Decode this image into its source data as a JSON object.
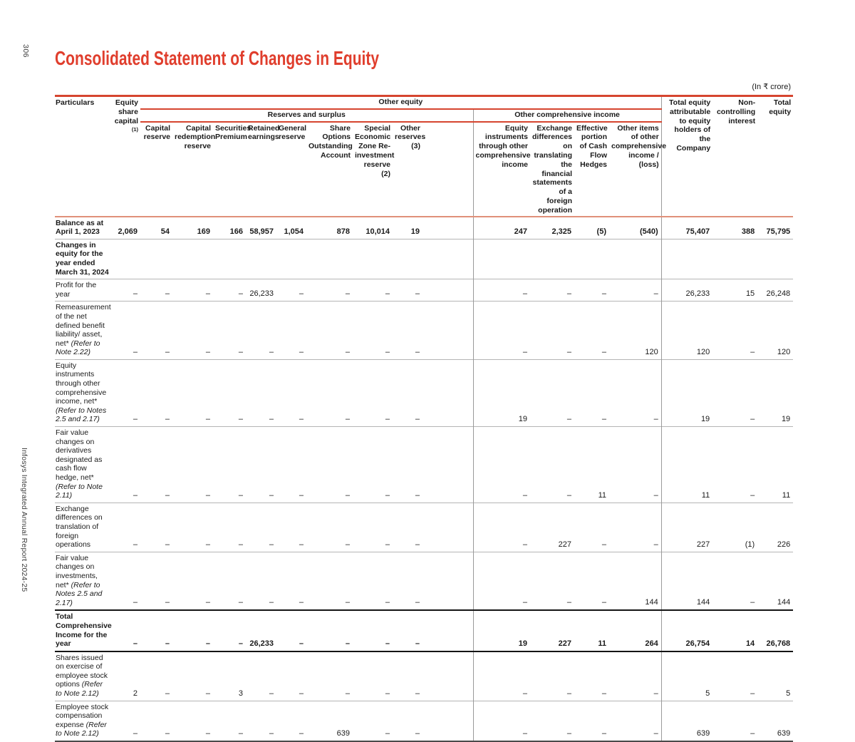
{
  "page": {
    "number": "306",
    "side_text": "Infosys Integrated Annual Report 2024-25",
    "title": "Consolidated Statement of Changes in Equity",
    "currency_note": "(In ₹ crore)"
  },
  "table": {
    "headers": {
      "particulars": "Particulars",
      "equity_share_capital": "Equity share capital",
      "equity_share_capital_note": "(1)",
      "groups": {
        "other_equity": "Other equity",
        "reserves_and_surplus": "Reserves and surplus",
        "other_comprehensive_income": "Other comprehensive income"
      },
      "columns": [
        "Capital reserve",
        "Capital redemption reserve",
        "Securities Premium",
        "Retained earnings",
        "General reserve",
        "Share Options Outstanding Account",
        "Special Economic Zone Re-investment reserve (2)",
        "Other reserves (3)",
        "Equity instruments through other comprehensive income",
        "Exchange differences on translating the financial statements of a foreign operation",
        "Effective portion of Cash Flow Hedges",
        "Other items of other comprehensive income / (loss)"
      ],
      "totals": [
        "Total equity attributable to equity holders of the Company",
        "Non-controlling interest",
        "Total equity"
      ]
    },
    "rows": [
      {
        "label": "Balance as at April 1, 2023",
        "note": "",
        "bold": true,
        "total": false,
        "values": [
          "2,069",
          "54",
          "169",
          "166",
          "58,957",
          "1,054",
          "878",
          "10,014",
          "19",
          "247",
          "2,325",
          "(5)",
          "(540)",
          "75,407",
          "388",
          "75,795"
        ]
      },
      {
        "label": "Changes in equity for the year ended March 31, 2024",
        "note": "",
        "bold": true,
        "label_only": true,
        "total": false,
        "values": [
          "",
          "",
          "",
          "",
          "",
          "",
          "",
          "",
          "",
          "",
          "",
          "",
          "",
          "",
          "",
          ""
        ]
      },
      {
        "label": "Profit for the year",
        "note": "",
        "bold": false,
        "total": false,
        "values": [
          "–",
          "–",
          "–",
          "–",
          "26,233",
          "–",
          "–",
          "–",
          "–",
          "–",
          "–",
          "–",
          "–",
          "26,233",
          "15",
          "26,248"
        ]
      },
      {
        "label": "Remeasurement of the net defined benefit liability/ asset, net*",
        "note": "(Refer to Note 2.22)",
        "bold": false,
        "total": false,
        "values": [
          "–",
          "–",
          "–",
          "–",
          "–",
          "–",
          "–",
          "–",
          "–",
          "–",
          "–",
          "–",
          "120",
          "120",
          "–",
          "120"
        ]
      },
      {
        "label": "Equity instruments through other comprehensive income, net*",
        "note": "(Refer to Notes 2.5 and 2.17)",
        "bold": false,
        "total": false,
        "values": [
          "–",
          "–",
          "–",
          "–",
          "–",
          "–",
          "–",
          "–",
          "–",
          "19",
          "–",
          "–",
          "–",
          "19",
          "–",
          "19"
        ]
      },
      {
        "label": "Fair value changes on derivatives designated as cash flow hedge, net*",
        "note": "(Refer to Note 2.11)",
        "bold": false,
        "total": false,
        "values": [
          "–",
          "–",
          "–",
          "–",
          "–",
          "–",
          "–",
          "–",
          "–",
          "–",
          "–",
          "11",
          "–",
          "11",
          "–",
          "11"
        ]
      },
      {
        "label": "Exchange differences on translation of foreign operations",
        "note": "",
        "bold": false,
        "total": false,
        "values": [
          "–",
          "–",
          "–",
          "–",
          "–",
          "–",
          "–",
          "–",
          "–",
          "–",
          "227",
          "–",
          "–",
          "227",
          "(1)",
          "226"
        ]
      },
      {
        "label": "Fair value changes on investments, net*",
        "note": "(Refer to Notes 2.5 and 2.17)",
        "bold": false,
        "total": false,
        "values": [
          "–",
          "–",
          "–",
          "–",
          "–",
          "–",
          "–",
          "–",
          "–",
          "–",
          "–",
          "–",
          "144",
          "144",
          "–",
          "144"
        ]
      },
      {
        "label": "Total Comprehensive Income for the year",
        "note": "",
        "bold": true,
        "total": true,
        "values": [
          "–",
          "–",
          "–",
          "–",
          "26,233",
          "–",
          "–",
          "–",
          "–",
          "19",
          "227",
          "11",
          "264",
          "26,754",
          "14",
          "26,768"
        ]
      },
      {
        "label": "Shares issued on exercise of employee stock options",
        "note": "(Refer to Note 2.12)",
        "bold": false,
        "total": false,
        "values": [
          "2",
          "–",
          "–",
          "3",
          "–",
          "–",
          "–",
          "–",
          "–",
          "–",
          "–",
          "–",
          "–",
          "5",
          "–",
          "5"
        ]
      },
      {
        "label": "Employee stock compensation expense",
        "note": "(Refer to Note 2.12)",
        "bold": false,
        "total": false,
        "values": [
          "–",
          "–",
          "–",
          "–",
          "–",
          "–",
          "639",
          "–",
          "–",
          "–",
          "–",
          "–",
          "–",
          "639",
          "–",
          "639"
        ]
      }
    ]
  }
}
